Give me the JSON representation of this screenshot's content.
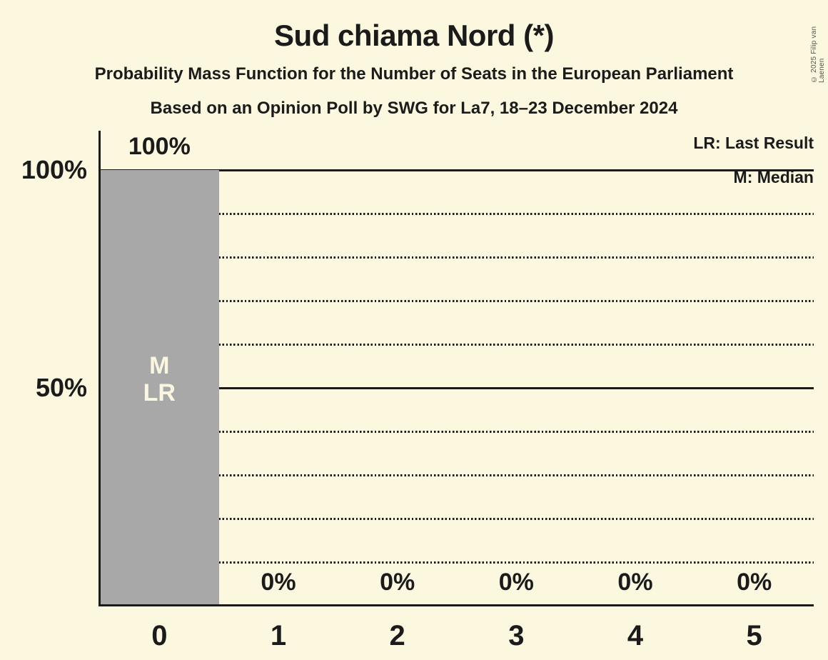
{
  "title": "Sud chiama Nord (*)",
  "subtitle": "Probability Mass Function for the Number of Seats in the European Parliament",
  "source_line": "Based on an Opinion Poll by SWG for La7, 18–23 December 2024",
  "legend": {
    "lr": "LR: Last Result",
    "m": "M: Median"
  },
  "copyright": "© 2025 Filip van Laenen",
  "colors": {
    "background": "#FCF8DF",
    "text": "#1B1B1B",
    "bar": "#A8A8A8",
    "bar_label": "#FAF6E0"
  },
  "chart_data": {
    "type": "bar",
    "title": "Sud chiama Nord (*)",
    "categories": [
      "0",
      "1",
      "2",
      "3",
      "4",
      "5"
    ],
    "values": [
      100,
      0,
      0,
      0,
      0,
      0
    ],
    "value_labels": [
      "100%",
      "0%",
      "0%",
      "0%",
      "0%",
      "0%"
    ],
    "ylim": [
      0,
      100
    ],
    "ytick_labels": [
      {
        "value": 100,
        "label": "100%"
      },
      {
        "value": 50,
        "label": "50%"
      }
    ],
    "grid": {
      "step": 10,
      "solid_at": [
        50,
        100
      ],
      "minor_style": "dotted"
    },
    "bar_annotations": [
      {
        "index": 0,
        "lines": [
          "M",
          "LR"
        ]
      }
    ],
    "legend_position": "top-right"
  }
}
